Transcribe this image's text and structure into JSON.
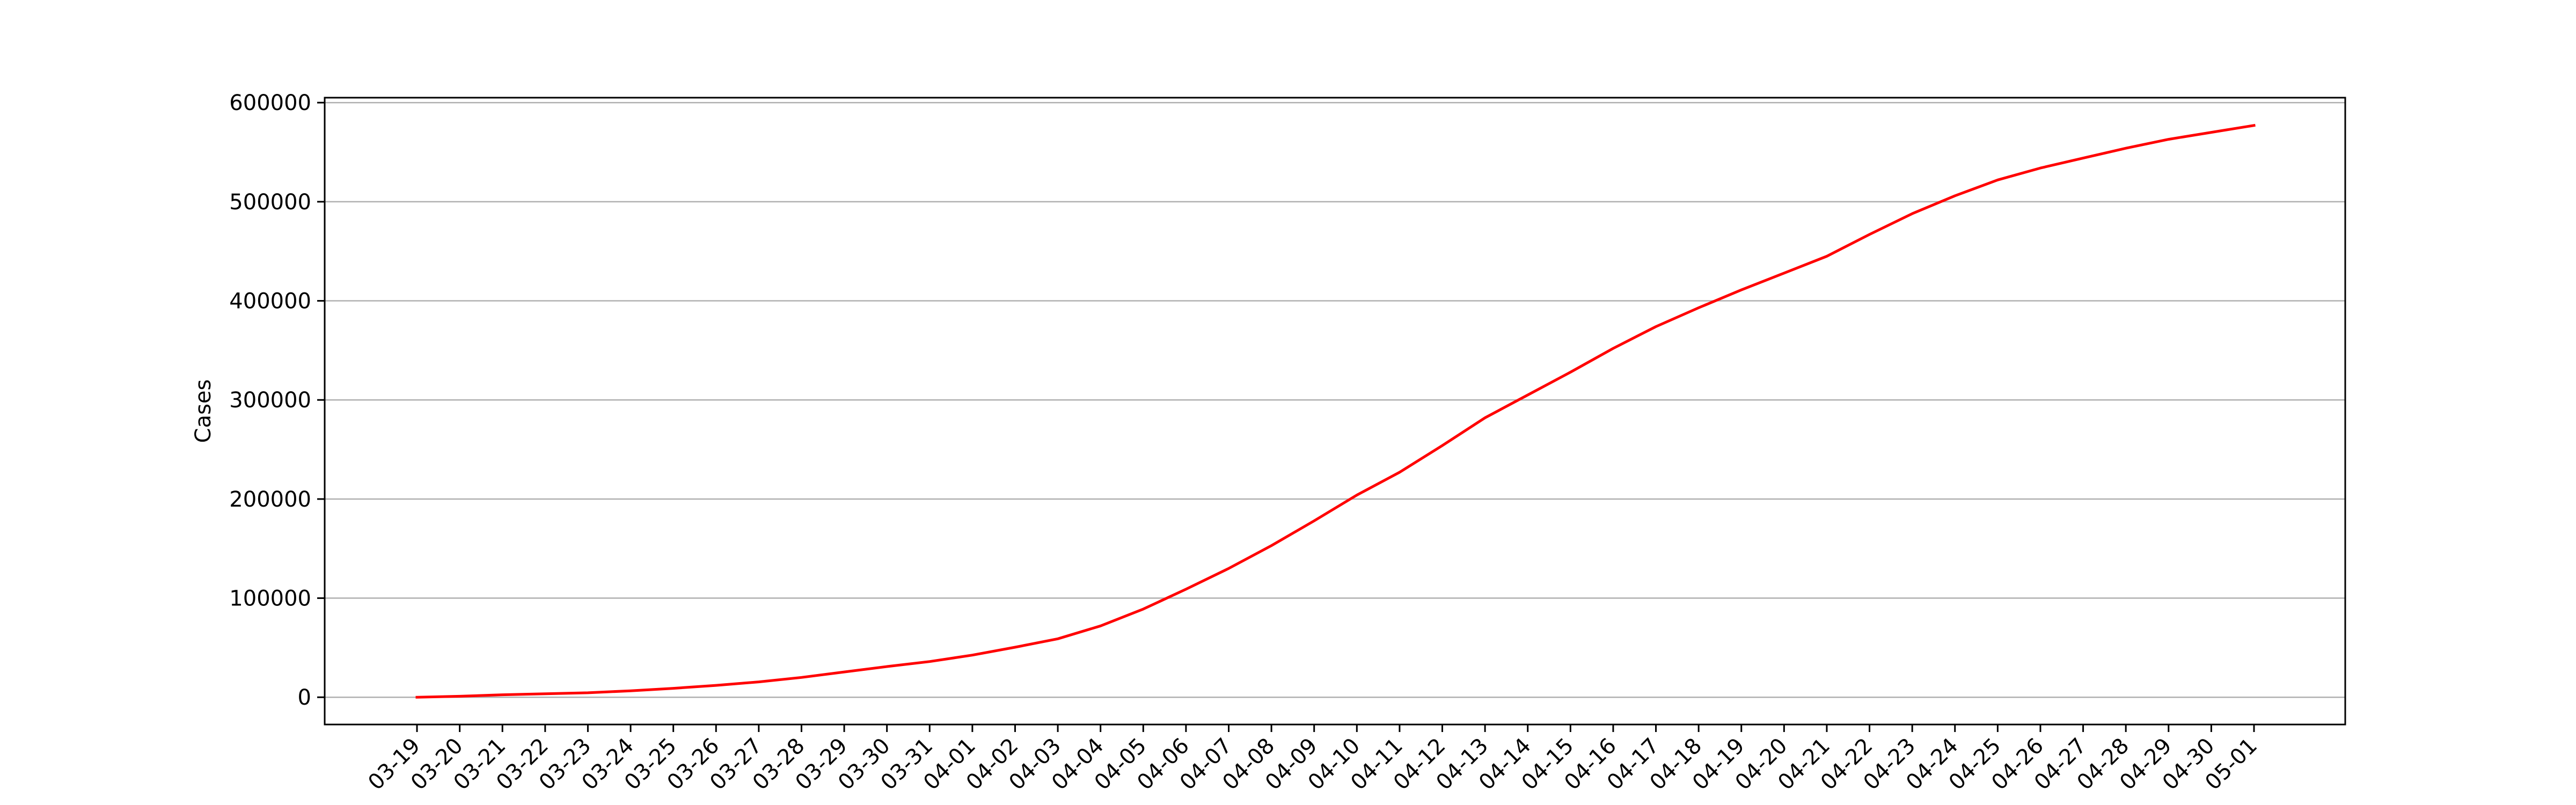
{
  "chart_data": {
    "type": "line",
    "title": "",
    "xlabel": "",
    "ylabel": "Cases",
    "categories": [
      "03-19",
      "03-20",
      "03-21",
      "03-22",
      "03-23",
      "03-24",
      "03-25",
      "03-26",
      "03-27",
      "03-28",
      "03-29",
      "03-30",
      "03-31",
      "04-01",
      "04-02",
      "04-03",
      "04-04",
      "04-05",
      "04-06",
      "04-07",
      "04-08",
      "04-09",
      "04-10",
      "04-11",
      "04-12",
      "04-13",
      "04-14",
      "04-15",
      "04-16",
      "04-17",
      "04-18",
      "04-19",
      "04-20",
      "04-21",
      "04-22",
      "04-23",
      "04-24",
      "04-25",
      "04-26",
      "04-27",
      "04-28",
      "04-29",
      "04-30",
      "05-01"
    ],
    "series": [
      {
        "color": "#ff0000",
        "values": [
          0,
          1000,
          2500,
          3500,
          4500,
          6500,
          9000,
          12000,
          15500,
          20000,
          25500,
          31000,
          36000,
          42500,
          50500,
          59000,
          72000,
          89000,
          109000,
          130000,
          153000,
          178000,
          204000,
          227000,
          254000,
          282000,
          305000,
          328000,
          352000,
          374000,
          393000,
          411000,
          428000,
          445000,
          467000,
          488000,
          506000,
          522000,
          534000,
          544000,
          554000,
          563000,
          570000,
          577000
        ]
      }
    ],
    "ylim": [
      -27500,
      605000
    ],
    "yticks": [
      0,
      100000,
      200000,
      300000,
      400000,
      500000,
      600000
    ],
    "grid": "horizontal",
    "legend": "none"
  }
}
